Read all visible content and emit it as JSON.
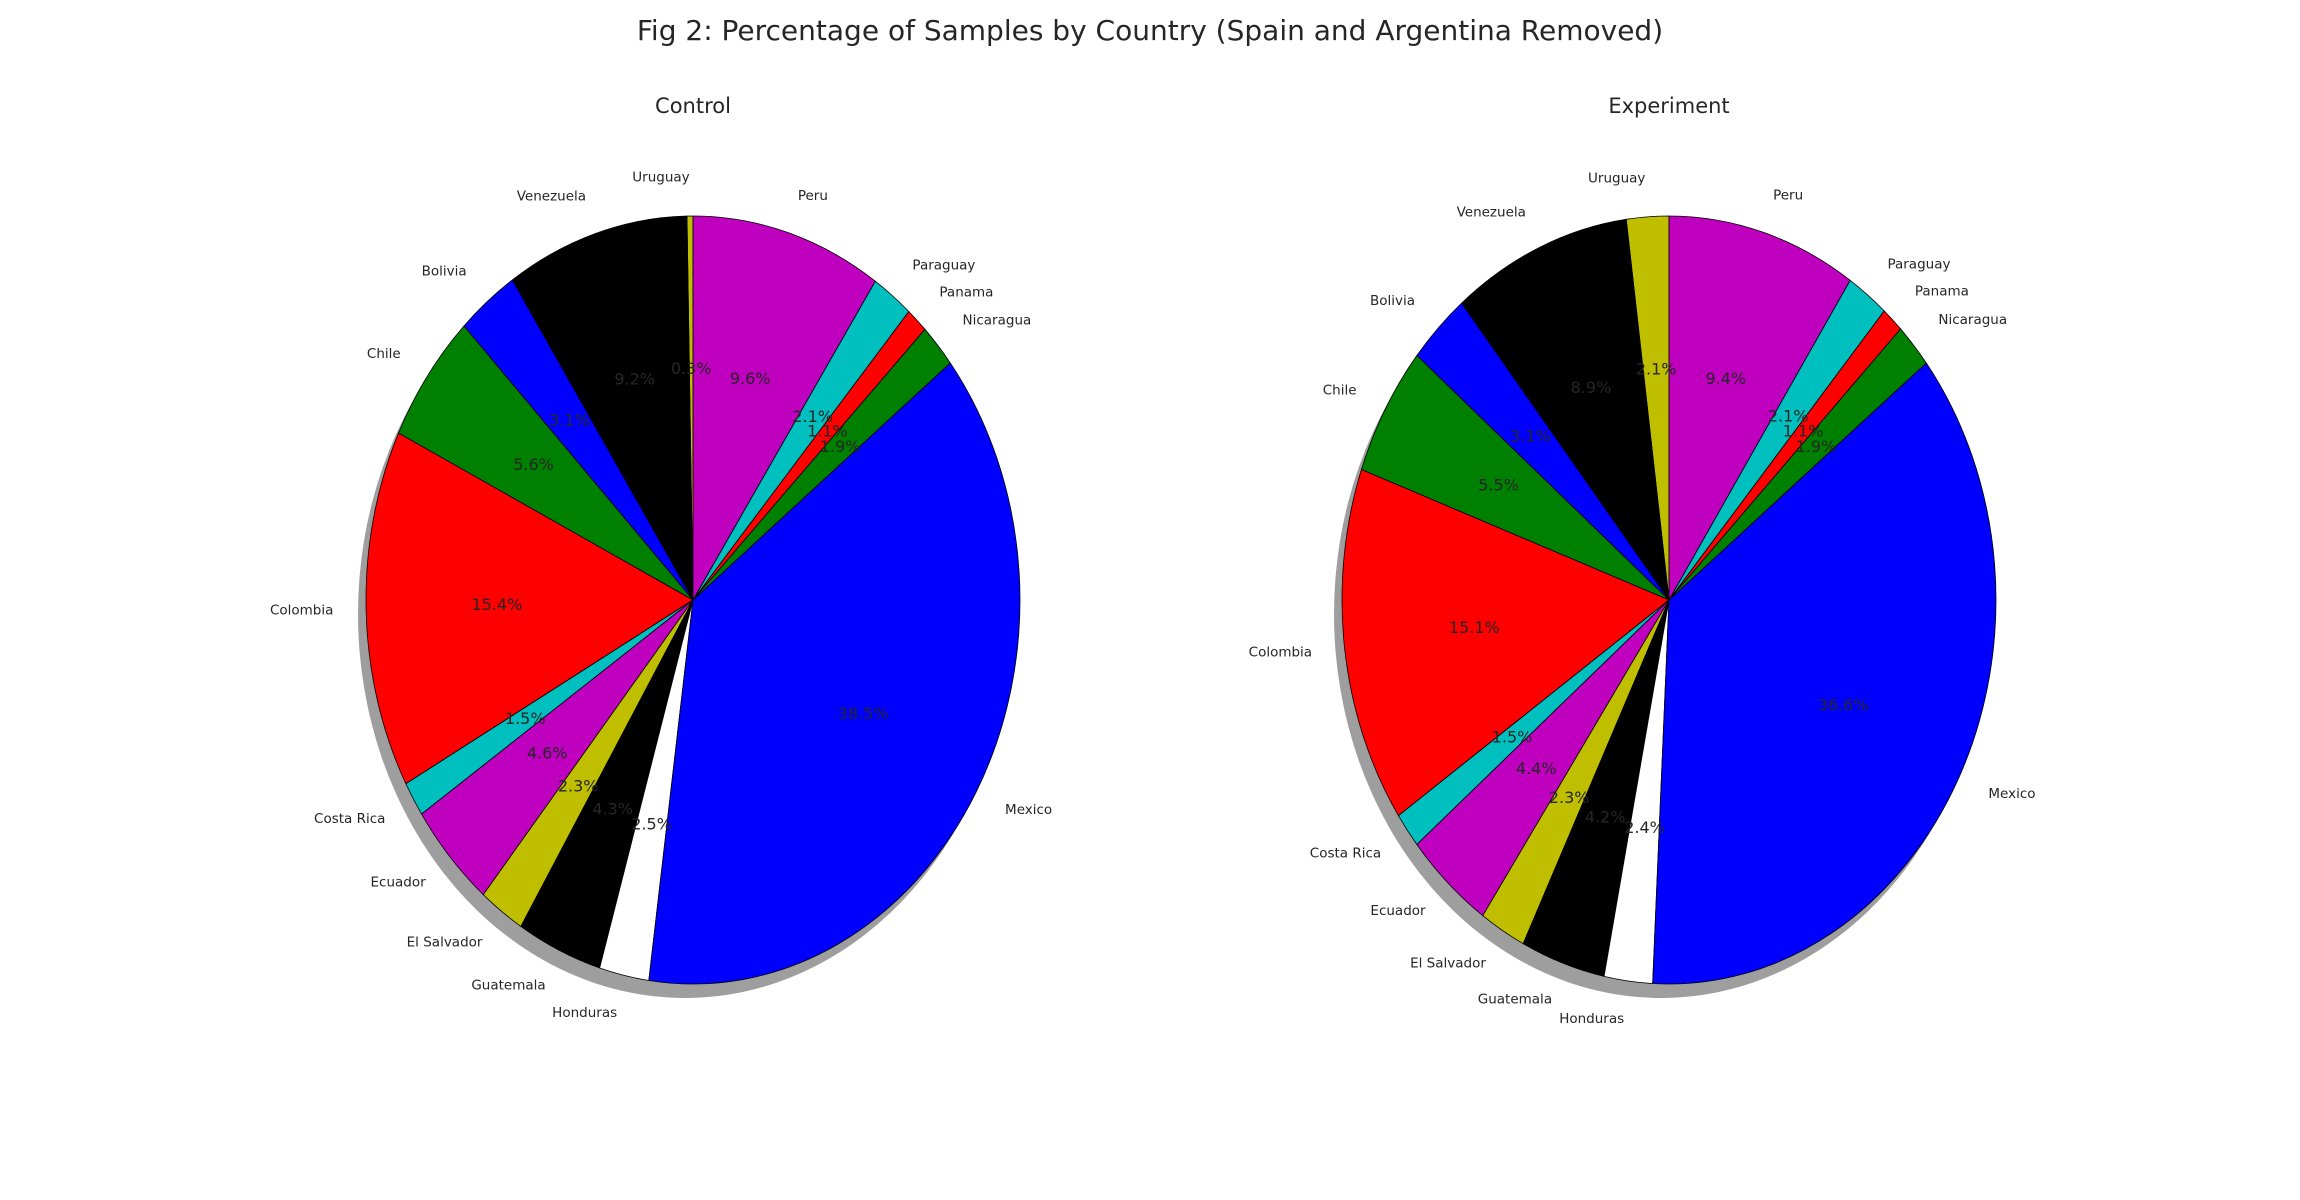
{
  "figure": {
    "title": "Fig 2: Percentage of Samples by Country (Spain and Argentina Removed)"
  },
  "chart_data": [
    {
      "type": "pie",
      "title": "Control",
      "start_angle_deg": 90,
      "direction": "counterclockwise",
      "shadow": true,
      "slices": [
        {
          "label": "Uruguay",
          "value": 0.3,
          "pct_label": "0.3%",
          "color": "#bfbf00"
        },
        {
          "label": "Venezuela",
          "value": 9.2,
          "pct_label": "9.2%",
          "color": "#000000"
        },
        {
          "label": "Bolivia",
          "value": 3.1,
          "pct_label": "3.1%",
          "color": "#0000ff"
        },
        {
          "label": "Chile",
          "value": 5.6,
          "pct_label": "5.6%",
          "color": "#008000"
        },
        {
          "label": "Colombia",
          "value": 15.4,
          "pct_label": "15.4%",
          "color": "#ff0000"
        },
        {
          "label": "Costa Rica",
          "value": 1.5,
          "pct_label": "1.5%",
          "color": "#00bfbf"
        },
        {
          "label": "Ecuador",
          "value": 4.6,
          "pct_label": "4.6%",
          "color": "#bf00bf"
        },
        {
          "label": "El Salvador",
          "value": 2.3,
          "pct_label": "2.3%",
          "color": "#bfbf00"
        },
        {
          "label": "Guatemala",
          "value": 4.3,
          "pct_label": "4.3%",
          "color": "#000000"
        },
        {
          "label": "Honduras",
          "value": 2.5,
          "pct_label": "2.5%",
          "color": "#ffffff"
        },
        {
          "label": "Mexico",
          "value": 38.5,
          "pct_label": "38.5%",
          "color": "#0000ff"
        },
        {
          "label": "Nicaragua",
          "value": 1.9,
          "pct_label": "1.9%",
          "color": "#008000"
        },
        {
          "label": "Panama",
          "value": 1.1,
          "pct_label": "1.1%",
          "color": "#ff0000"
        },
        {
          "label": "Paraguay",
          "value": 2.1,
          "pct_label": "2.1%",
          "color": "#00bfbf"
        },
        {
          "label": "Peru",
          "value": 9.6,
          "pct_label": "9.6%",
          "color": "#bf00bf"
        }
      ]
    },
    {
      "type": "pie",
      "title": "Experiment",
      "start_angle_deg": 90,
      "direction": "counterclockwise",
      "shadow": true,
      "slices": [
        {
          "label": "Uruguay",
          "value": 2.1,
          "pct_label": "2.1%",
          "color": "#bfbf00"
        },
        {
          "label": "Venezuela",
          "value": 8.9,
          "pct_label": "8.9%",
          "color": "#000000"
        },
        {
          "label": "Bolivia",
          "value": 3.1,
          "pct_label": "3.1%",
          "color": "#0000ff"
        },
        {
          "label": "Chile",
          "value": 5.5,
          "pct_label": "5.5%",
          "color": "#008000"
        },
        {
          "label": "Colombia",
          "value": 15.1,
          "pct_label": "15.1%",
          "color": "#ff0000"
        },
        {
          "label": "Costa Rica",
          "value": 1.5,
          "pct_label": "1.5%",
          "color": "#00bfbf"
        },
        {
          "label": "Ecuador",
          "value": 4.4,
          "pct_label": "4.4%",
          "color": "#bf00bf"
        },
        {
          "label": "El Salvador",
          "value": 2.3,
          "pct_label": "2.3%",
          "color": "#bfbf00"
        },
        {
          "label": "Guatemala",
          "value": 4.2,
          "pct_label": "4.2%",
          "color": "#000000"
        },
        {
          "label": "Honduras",
          "value": 2.4,
          "pct_label": "2.4%",
          "color": "#ffffff"
        },
        {
          "label": "Mexico",
          "value": 36.6,
          "pct_label": "36.6%",
          "color": "#0000ff"
        },
        {
          "label": "Nicaragua",
          "value": 1.9,
          "pct_label": "1.9%",
          "color": "#008000"
        },
        {
          "label": "Panama",
          "value": 1.1,
          "pct_label": "1.1%",
          "color": "#ff0000"
        },
        {
          "label": "Paraguay",
          "value": 2.1,
          "pct_label": "2.1%",
          "color": "#00bfbf"
        },
        {
          "label": "Peru",
          "value": 9.4,
          "pct_label": "9.4%",
          "color": "#bf00bf"
        }
      ]
    }
  ]
}
